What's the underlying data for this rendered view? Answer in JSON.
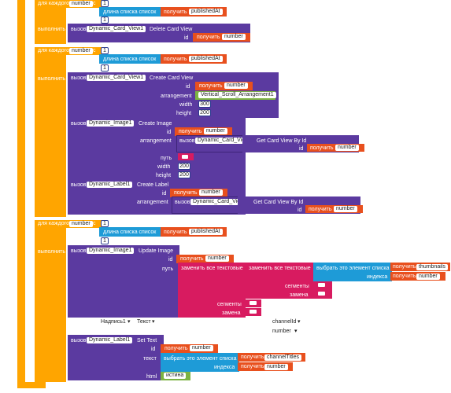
{
  "kw": {
    "to": "то",
    "for_each": "для каждого",
    "from": "с",
    "to_range": "до",
    "step": "с шагом",
    "do": "выполнить",
    "call": "вызов",
    "get": "получить",
    "list_len": "длина списка  список",
    "id": "id",
    "arrangement": "arrangement",
    "width": "width",
    "height": "height",
    "path": "путь",
    "replace_all": "заменить все  текстовые",
    "segments": "сегменты",
    "replacement": "замена",
    "select_item": "выбрать это элемент списка",
    "index": "индекса",
    "text": "текст",
    "html": "html",
    "true_val": "истина"
  },
  "loop_var": "number",
  "one": "1",
  "published": "publishedAt",
  "card_view": "Dynamic_Card_View1",
  "image": "Dynamic_Image1",
  "label": "Dynamic_Label1",
  "delete_card": "Delete Card View",
  "create_card": "Create Card View",
  "create_image": "Create Image",
  "create_label": "Create Label",
  "get_card": "Get Card View By Id",
  "update_image": "Update Image",
  "set_text": "Set Text",
  "arrangement_val": "Vertical_Scroll_Arrangement1",
  "w300": "300",
  "h200": "200",
  "w200": "200",
  "thumbnails": "thumbnails",
  "channel_titles": "channelTitles",
  "dropdown_row": {
    "label1": "Надпись1",
    "text": "Текст",
    "channel_id": "channelId",
    "number": "number"
  },
  "colors": {
    "control": "#ffa500",
    "component": "#5b3aa0",
    "text": "#d81b60",
    "list": "#1e9bd7",
    "variable": "#e8501e",
    "logic": "#7cb342",
    "math": "#2b3c8f"
  }
}
